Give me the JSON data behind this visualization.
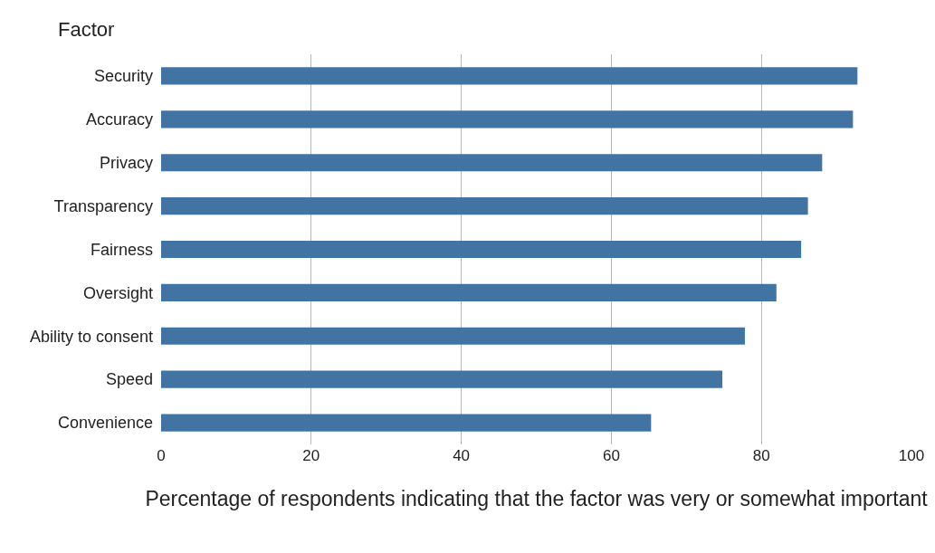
{
  "chart_data": {
    "type": "bar",
    "orientation": "horizontal",
    "ylabel": "Factor",
    "xlabel": "Percentage of respondents indicating that the factor was very or somewhat important",
    "categories": [
      "Security",
      "Accuracy",
      "Privacy",
      "Transparency",
      "Fairness",
      "Oversight",
      "Ability to consent",
      "Speed",
      "Convenience"
    ],
    "values": [
      92.8,
      92.2,
      88.1,
      86.2,
      85.3,
      82.0,
      77.8,
      74.8,
      65.3
    ],
    "color": "#4274a3",
    "xlim": [
      0,
      100
    ],
    "xticks": [
      0,
      20,
      40,
      60,
      80,
      100
    ],
    "grid": "x"
  }
}
